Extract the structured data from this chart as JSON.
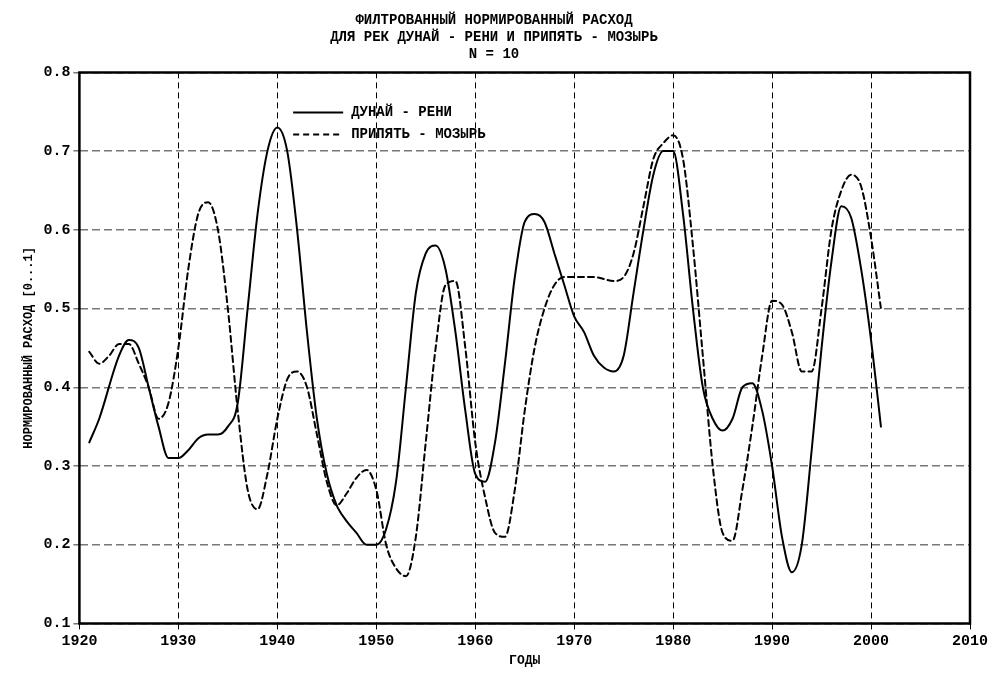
{
  "chart_data": {
    "type": "line",
    "title": "ФИЛТРОВАННЫЙ НОРМИРОВАННЫЙ РАСХОД\nДЛЯ РЕК ДУНАЙ - РЕНИ И ПРИПЯТЬ - МОЗЫРЬ",
    "subtitle": "N = 10",
    "xlabel": "ГОДЫ",
    "ylabel": "НОРМИРОВАННЫЙ РАСХОД [0...1]",
    "xlim": [
      1920,
      2010
    ],
    "xticks": [
      1920,
      1930,
      1940,
      1950,
      1960,
      1970,
      1980,
      1990,
      2000,
      2010
    ],
    "ylim": [
      0.1,
      0.8
    ],
    "yticks": [
      0.1,
      0.2,
      0.3,
      0.4,
      0.5,
      0.6,
      0.7,
      0.8
    ],
    "grid": true,
    "legend": "top",
    "marker": "none",
    "series": [
      {
        "name": "ДУНАЙ - РЕНИ",
        "color": "#000000",
        "line_style": "solid",
        "x": [
          1921,
          1922,
          1924,
          1925,
          1926,
          1927,
          1928,
          1929,
          1930,
          1931,
          1932,
          1933,
          1934,
          1935,
          1936,
          1937,
          1938,
          1939,
          1940,
          1941,
          1942,
          1943,
          1944,
          1945,
          1946,
          1947,
          1948,
          1949,
          1950,
          1951,
          1952,
          1953,
          1954,
          1955,
          1956,
          1957,
          1958,
          1959,
          1960,
          1961,
          1962,
          1963,
          1964,
          1965,
          1966,
          1967,
          1968,
          1969,
          1970,
          1971,
          1972,
          1973,
          1974,
          1975,
          1976,
          1977,
          1978,
          1979,
          1980,
          1981,
          1982,
          1983,
          1984,
          1985,
          1986,
          1987,
          1988,
          1989,
          1990,
          1991,
          1992,
          1993,
          1994,
          1995,
          1996,
          1997,
          1998,
          1999,
          2000,
          2001
        ],
        "values": [
          0.33,
          0.36,
          0.44,
          0.46,
          0.45,
          0.4,
          0.35,
          0.31,
          0.31,
          0.32,
          0.335,
          0.34,
          0.34,
          0.35,
          0.38,
          0.5,
          0.62,
          0.7,
          0.73,
          0.7,
          0.6,
          0.47,
          0.36,
          0.29,
          0.25,
          0.23,
          0.215,
          0.2,
          0.2,
          0.22,
          0.28,
          0.4,
          0.52,
          0.57,
          0.58,
          0.55,
          0.47,
          0.37,
          0.29,
          0.28,
          0.33,
          0.43,
          0.54,
          0.61,
          0.62,
          0.61,
          0.57,
          0.53,
          0.49,
          0.47,
          0.44,
          0.425,
          0.42,
          0.44,
          0.52,
          0.6,
          0.67,
          0.7,
          0.7,
          0.62,
          0.5,
          0.4,
          0.36,
          0.345,
          0.36,
          0.4,
          0.405,
          0.37,
          0.3,
          0.21,
          0.165,
          0.2,
          0.32,
          0.45,
          0.56,
          0.63,
          0.615,
          0.55,
          0.46,
          0.35
        ]
      },
      {
        "name": "ПРИПЯТЬ - МОЗЫРЬ",
        "color": "#000000",
        "line_style": "dashed",
        "x": [
          1921,
          1922,
          1923,
          1924,
          1925,
          1926,
          1927,
          1928,
          1929,
          1930,
          1931,
          1932,
          1933,
          1934,
          1935,
          1936,
          1937,
          1938,
          1939,
          1940,
          1941,
          1942,
          1943,
          1944,
          1945,
          1946,
          1947,
          1948,
          1949,
          1950,
          1951,
          1952,
          1953,
          1954,
          1955,
          1956,
          1957,
          1958,
          1959,
          1960,
          1961,
          1962,
          1963,
          1964,
          1965,
          1966,
          1967,
          1968,
          1969,
          1970,
          1972,
          1974,
          1975,
          1976,
          1977,
          1978,
          1979,
          1980,
          1981,
          1982,
          1983,
          1984,
          1985,
          1986,
          1987,
          1988,
          1989,
          1990,
          1991,
          1992,
          1993,
          1994,
          1995,
          1996,
          1997,
          1998,
          1999,
          2000,
          2001
        ],
        "values": [
          0.445,
          0.43,
          0.44,
          0.455,
          0.455,
          0.43,
          0.4,
          0.36,
          0.38,
          0.45,
          0.55,
          0.62,
          0.635,
          0.6,
          0.5,
          0.37,
          0.27,
          0.245,
          0.29,
          0.36,
          0.41,
          0.42,
          0.4,
          0.34,
          0.28,
          0.25,
          0.265,
          0.285,
          0.295,
          0.27,
          0.2,
          0.17,
          0.16,
          0.21,
          0.33,
          0.45,
          0.53,
          0.535,
          0.45,
          0.33,
          0.26,
          0.215,
          0.21,
          0.27,
          0.37,
          0.45,
          0.5,
          0.53,
          0.54,
          0.54,
          0.54,
          0.535,
          0.54,
          0.57,
          0.63,
          0.69,
          0.71,
          0.72,
          0.69,
          0.58,
          0.44,
          0.3,
          0.215,
          0.205,
          0.27,
          0.35,
          0.44,
          0.51,
          0.505,
          0.47,
          0.42,
          0.42,
          0.5,
          0.6,
          0.65,
          0.67,
          0.655,
          0.59,
          0.5
        ]
      }
    ]
  }
}
